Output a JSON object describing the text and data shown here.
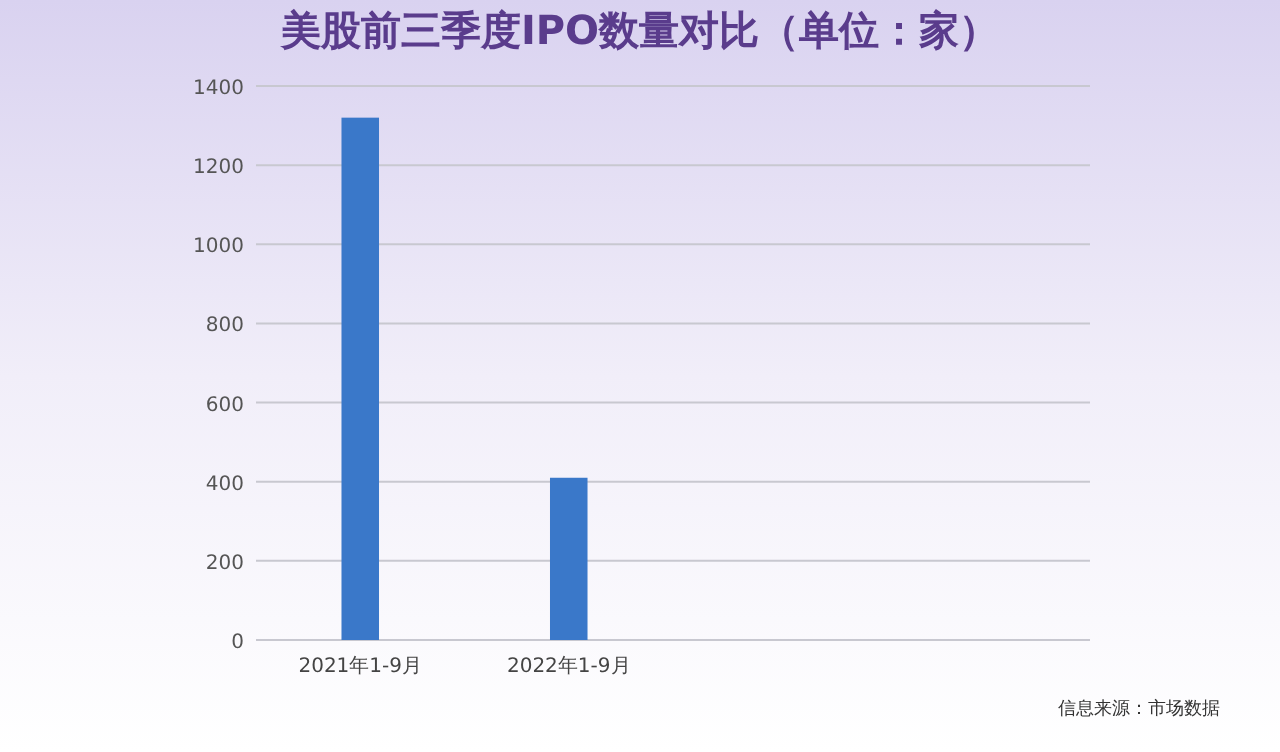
{
  "chart_data": {
    "type": "bar",
    "title": "美股前三季度IPO数量对比（单位：家）",
    "categories": [
      "2021年1-9月",
      "2022年1-9月",
      null,
      null
    ],
    "values": [
      1320,
      410,
      null,
      null
    ],
    "color": "#3a78c9",
    "ylim": [
      0,
      1400
    ],
    "yticks": [
      0,
      200,
      400,
      600,
      800,
      1000,
      1200,
      1400
    ],
    "grid": "y",
    "annotations": [
      "信息来源：市场数据"
    ]
  }
}
